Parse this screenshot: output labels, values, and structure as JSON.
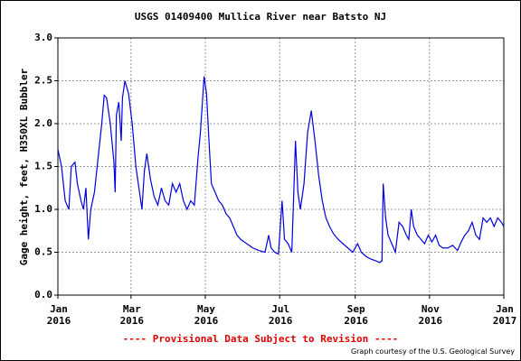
{
  "chart_data": {
    "type": "line",
    "title": "USGS 01409400 Mullica River near Batsto NJ",
    "ylabel": "Gage height, feet, H350XL Bubbler",
    "notice": "---- Provisional Data Subject to Revision ----",
    "credit": "Graph courtesy of the U.S. Geological Survey",
    "color": "#0000dd",
    "grid": true,
    "xlim": [
      0,
      366
    ],
    "xticks": [
      {
        "value": 0,
        "label": "Jan 2016"
      },
      {
        "value": 60,
        "label": "Mar 2016"
      },
      {
        "value": 121,
        "label": "May 2016"
      },
      {
        "value": 182,
        "label": "Jul 2016"
      },
      {
        "value": 244,
        "label": "Sep 2016"
      },
      {
        "value": 305,
        "label": "Nov 2016"
      },
      {
        "value": 366,
        "label": "Jan 2017"
      }
    ],
    "ylim": [
      0,
      3
    ],
    "yticks": [
      {
        "value": 0,
        "label": "0.0"
      },
      0.5,
      {
        "value": 1,
        "label": "1.0"
      },
      1.5,
      {
        "value": 2,
        "label": "2.0"
      },
      2.5,
      {
        "value": 3,
        "label": "3.0"
      }
    ],
    "x": [
      0,
      3,
      6,
      9,
      11,
      14,
      16,
      19,
      21,
      23,
      25,
      27,
      30,
      33,
      36,
      38,
      40,
      43,
      46,
      47,
      48,
      50,
      52,
      53,
      55,
      58,
      61,
      64,
      67,
      69,
      71,
      73,
      76,
      79,
      82,
      85,
      88,
      91,
      94,
      97,
      100,
      103,
      106,
      109,
      112,
      115,
      117,
      120,
      122,
      124,
      126,
      129,
      132,
      135,
      138,
      141,
      144,
      147,
      150,
      155,
      160,
      165,
      170,
      173,
      175,
      178,
      181,
      184,
      186,
      189,
      192,
      195,
      197,
      199,
      202,
      205,
      208,
      211,
      214,
      217,
      220,
      223,
      226,
      230,
      234,
      238,
      242,
      246,
      249,
      253,
      257,
      261,
      264,
      266,
      267,
      269,
      271,
      274,
      277,
      280,
      283,
      286,
      288,
      290,
      292,
      295,
      298,
      301,
      304,
      307,
      310,
      313,
      316,
      320,
      324,
      328,
      331,
      334,
      337,
      340,
      343,
      346,
      349,
      352,
      355,
      358,
      361,
      364,
      366
    ],
    "values": [
      1.7,
      1.5,
      1.1,
      1.0,
      1.5,
      1.55,
      1.3,
      1.1,
      1.0,
      1.25,
      0.65,
      1.0,
      1.2,
      1.6,
      2.0,
      2.33,
      2.3,
      2.0,
      1.55,
      1.2,
      2.1,
      2.25,
      1.8,
      2.3,
      2.5,
      2.35,
      2.0,
      1.5,
      1.2,
      1.0,
      1.45,
      1.65,
      1.35,
      1.15,
      1.05,
      1.25,
      1.1,
      1.05,
      1.3,
      1.2,
      1.3,
      1.1,
      1.0,
      1.1,
      1.05,
      1.6,
      1.9,
      2.55,
      2.35,
      1.8,
      1.3,
      1.2,
      1.1,
      1.05,
      0.95,
      0.9,
      0.8,
      0.7,
      0.65,
      0.6,
      0.55,
      0.52,
      0.5,
      0.7,
      0.55,
      0.5,
      0.48,
      1.1,
      0.65,
      0.6,
      0.5,
      1.8,
      1.2,
      1.0,
      1.3,
      1.9,
      2.15,
      1.8,
      1.4,
      1.1,
      0.9,
      0.8,
      0.72,
      0.65,
      0.6,
      0.55,
      0.5,
      0.6,
      0.5,
      0.45,
      0.42,
      0.4,
      0.38,
      0.4,
      1.3,
      0.9,
      0.7,
      0.6,
      0.5,
      0.85,
      0.8,
      0.7,
      0.65,
      1.0,
      0.8,
      0.7,
      0.65,
      0.6,
      0.7,
      0.62,
      0.7,
      0.58,
      0.55,
      0.55,
      0.58,
      0.52,
      0.62,
      0.7,
      0.75,
      0.85,
      0.7,
      0.65,
      0.9,
      0.85,
      0.9,
      0.8,
      0.9,
      0.85,
      0.8
    ]
  }
}
